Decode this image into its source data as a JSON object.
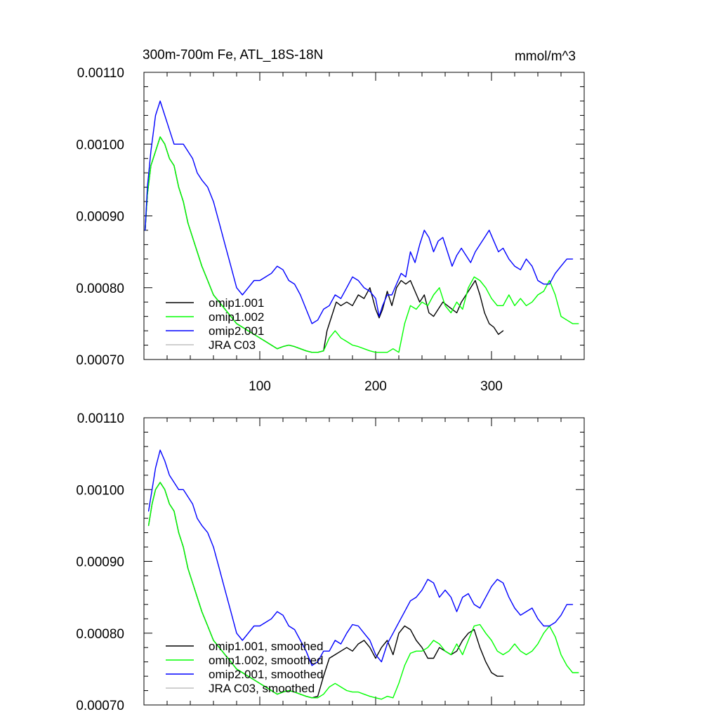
{
  "figure": {
    "title_left": "300m-700m Fe, ATL_18S-18N",
    "title_right": "mmol/m^3"
  },
  "chart_data": [
    {
      "type": "line",
      "title": "300m-700m Fe, ATL_18S-18N",
      "units": "mmol/m^3",
      "xlim": [
        0,
        380
      ],
      "ylim": [
        0.0007,
        0.0011
      ],
      "xticks": [
        100,
        200,
        300
      ],
      "xtick_labels": [
        "100",
        "200",
        "300"
      ],
      "yticks": [
        0.0007,
        0.0008,
        0.0009,
        0.001,
        0.0011
      ],
      "ytick_labels": [
        "0.00070",
        "0.00080",
        "0.00090",
        "0.00100",
        "0.00110"
      ],
      "legend_position": "lower-left",
      "series": [
        {
          "name": "omip1.001",
          "color": "#000000",
          "x": [
            1,
            3,
            6,
            10,
            14,
            18,
            22,
            26,
            30,
            34,
            38,
            42,
            46,
            50,
            55,
            60,
            65,
            70,
            75,
            80,
            85,
            90,
            95,
            100,
            105,
            110,
            115,
            120,
            125,
            130,
            135,
            140,
            145,
            150,
            155,
            158,
            162,
            166,
            170,
            175,
            180,
            185,
            190,
            195,
            200,
            203,
            206,
            210,
            214,
            218,
            222,
            226,
            230,
            234,
            238,
            242,
            246,
            250,
            254,
            258,
            262,
            266,
            270,
            274,
            278,
            282,
            286,
            290,
            294,
            298,
            302,
            306,
            310
          ],
          "y": [
            0.00088,
            0.00093,
            0.00097,
            0.00099,
            0.00101,
            0.001,
            0.00098,
            0.00097,
            0.00094,
            0.00092,
            0.00089,
            0.00087,
            0.00085,
            0.00083,
            0.00081,
            0.00079,
            0.00078,
            0.00077,
            0.00076,
            0.00075,
            0.000745,
            0.00074,
            0.000735,
            0.00073,
            0.000725,
            0.00072,
            0.000715,
            0.000718,
            0.00072,
            0.000718,
            0.000715,
            0.000712,
            0.00071,
            0.00071,
            0.000712,
            0.00074,
            0.00076,
            0.00078,
            0.000775,
            0.00078,
            0.000775,
            0.00079,
            0.000785,
            0.0008,
            0.00077,
            0.000758,
            0.00077,
            0.000795,
            0.000775,
            0.0008,
            0.00081,
            0.000805,
            0.00081,
            0.000795,
            0.00078,
            0.00079,
            0.000765,
            0.00076,
            0.00077,
            0.00078,
            0.000775,
            0.00077,
            0.000765,
            0.00078,
            0.00079,
            0.0008,
            0.00081,
            0.00079,
            0.000765,
            0.00075,
            0.000745,
            0.000735,
            0.00074
          ]
        },
        {
          "name": "omip1.002",
          "color": "#00ff00",
          "x": [
            1,
            3,
            6,
            10,
            14,
            18,
            22,
            26,
            30,
            34,
            38,
            42,
            46,
            50,
            55,
            60,
            65,
            70,
            75,
            80,
            85,
            90,
            95,
            100,
            105,
            110,
            115,
            120,
            125,
            130,
            135,
            140,
            145,
            150,
            155,
            160,
            165,
            170,
            175,
            180,
            185,
            190,
            195,
            200,
            205,
            210,
            215,
            220,
            225,
            230,
            235,
            240,
            245,
            250,
            255,
            260,
            265,
            270,
            275,
            280,
            285,
            290,
            295,
            300,
            305,
            310,
            315,
            320,
            325,
            330,
            335,
            340,
            345,
            350,
            355,
            360,
            365,
            370,
            375
          ],
          "y": [
            0.00088,
            0.00093,
            0.00097,
            0.00099,
            0.00101,
            0.001,
            0.00098,
            0.00097,
            0.00094,
            0.00092,
            0.00089,
            0.00087,
            0.00085,
            0.00083,
            0.00081,
            0.00079,
            0.00078,
            0.00077,
            0.00076,
            0.00075,
            0.000745,
            0.00074,
            0.000735,
            0.00073,
            0.000725,
            0.00072,
            0.000715,
            0.000718,
            0.00072,
            0.000718,
            0.000715,
            0.000712,
            0.00071,
            0.00071,
            0.000712,
            0.00073,
            0.00074,
            0.00073,
            0.000725,
            0.00072,
            0.000718,
            0.000715,
            0.000712,
            0.00071,
            0.00071,
            0.00071,
            0.000715,
            0.00071,
            0.00075,
            0.000775,
            0.00077,
            0.00078,
            0.000775,
            0.00079,
            0.0008,
            0.000775,
            0.000765,
            0.00078,
            0.00077,
            0.0008,
            0.000815,
            0.00081,
            0.0008,
            0.000785,
            0.000775,
            0.000775,
            0.00079,
            0.000775,
            0.000785,
            0.000775,
            0.00078,
            0.00079,
            0.000795,
            0.00081,
            0.00079,
            0.00076,
            0.000755,
            0.00075,
            0.00075
          ]
        },
        {
          "name": "omip2.001",
          "color": "#0000ff",
          "x": [
            1,
            3,
            6,
            10,
            14,
            18,
            22,
            26,
            30,
            34,
            38,
            42,
            46,
            50,
            55,
            60,
            65,
            70,
            75,
            80,
            85,
            90,
            95,
            100,
            105,
            110,
            115,
            120,
            125,
            130,
            135,
            140,
            145,
            150,
            155,
            160,
            165,
            170,
            175,
            180,
            185,
            190,
            195,
            200,
            203,
            206,
            210,
            214,
            218,
            222,
            226,
            230,
            234,
            238,
            242,
            246,
            250,
            254,
            258,
            262,
            266,
            270,
            274,
            278,
            282,
            286,
            290,
            294,
            298,
            302,
            306,
            310,
            315,
            320,
            325,
            330,
            335,
            340,
            345,
            350,
            355,
            360,
            365,
            370
          ],
          "y": [
            0.00088,
            0.00094,
            0.00099,
            0.00104,
            0.00106,
            0.00104,
            0.00102,
            0.001,
            0.001,
            0.001,
            0.00099,
            0.00098,
            0.00096,
            0.00095,
            0.00094,
            0.00092,
            0.00089,
            0.00086,
            0.00083,
            0.0008,
            0.00079,
            0.0008,
            0.00081,
            0.00081,
            0.000815,
            0.00082,
            0.00083,
            0.000825,
            0.00081,
            0.000805,
            0.00079,
            0.00077,
            0.00075,
            0.000755,
            0.00077,
            0.000775,
            0.00079,
            0.000785,
            0.0008,
            0.000815,
            0.00081,
            0.0008,
            0.000795,
            0.000785,
            0.00076,
            0.000775,
            0.00079,
            0.00079,
            0.000805,
            0.00082,
            0.000815,
            0.00085,
            0.000835,
            0.00086,
            0.00088,
            0.00087,
            0.00085,
            0.000865,
            0.00087,
            0.00085,
            0.00083,
            0.000845,
            0.000855,
            0.000845,
            0.000835,
            0.00085,
            0.00086,
            0.00087,
            0.00088,
            0.000865,
            0.00085,
            0.000855,
            0.00084,
            0.00083,
            0.000825,
            0.00084,
            0.00083,
            0.00081,
            0.000805,
            0.000805,
            0.00082,
            0.00083,
            0.00084,
            0.00084
          ]
        },
        {
          "name": "JRA C03",
          "color": "#c0c0c0",
          "x": [],
          "y": []
        }
      ]
    },
    {
      "type": "line",
      "title": "",
      "xlim": [
        0,
        380
      ],
      "ylim": [
        0.0007,
        0.0011
      ],
      "xticks": [
        100,
        200,
        300
      ],
      "xtick_labels": [],
      "yticks": [
        0.0007,
        0.0008,
        0.0009,
        0.001,
        0.0011
      ],
      "ytick_labels": [
        "0.00070",
        "0.00080",
        "0.00090",
        "0.00100",
        "0.00110"
      ],
      "legend_position": "lower-left",
      "series": [
        {
          "name": "omip1.001, smoothed",
          "color": "#000000",
          "x": [
            4,
            7,
            10,
            14,
            18,
            22,
            26,
            30,
            34,
            38,
            42,
            46,
            50,
            55,
            60,
            65,
            70,
            75,
            80,
            85,
            90,
            95,
            100,
            105,
            110,
            115,
            120,
            125,
            130,
            135,
            140,
            145,
            150,
            155,
            160,
            165,
            170,
            175,
            180,
            185,
            190,
            195,
            200,
            205,
            210,
            215,
            220,
            225,
            230,
            235,
            240,
            245,
            250,
            255,
            260,
            265,
            270,
            275,
            280,
            285,
            290,
            295,
            300,
            305,
            310
          ],
          "y": [
            0.00095,
            0.00098,
            0.001,
            0.00101,
            0.001,
            0.00098,
            0.00097,
            0.00094,
            0.00092,
            0.00089,
            0.00087,
            0.00085,
            0.00083,
            0.00081,
            0.00079,
            0.00078,
            0.00077,
            0.00076,
            0.00075,
            0.000745,
            0.00074,
            0.000735,
            0.00073,
            0.000725,
            0.00072,
            0.000715,
            0.000718,
            0.00072,
            0.000718,
            0.000715,
            0.000712,
            0.00071,
            0.000712,
            0.00074,
            0.000765,
            0.00077,
            0.000775,
            0.00078,
            0.000775,
            0.000785,
            0.00079,
            0.00078,
            0.000765,
            0.00078,
            0.00079,
            0.00077,
            0.0008,
            0.00081,
            0.000805,
            0.00079,
            0.00078,
            0.000765,
            0.000765,
            0.00078,
            0.000775,
            0.00077,
            0.000775,
            0.00079,
            0.0008,
            0.000805,
            0.00078,
            0.00076,
            0.000745,
            0.00074,
            0.00074
          ]
        },
        {
          "name": "omip1.002, smoothed",
          "color": "#00ff00",
          "x": [
            4,
            7,
            10,
            14,
            18,
            22,
            26,
            30,
            34,
            38,
            42,
            46,
            50,
            55,
            60,
            65,
            70,
            75,
            80,
            85,
            90,
            95,
            100,
            105,
            110,
            115,
            120,
            125,
            130,
            135,
            140,
            145,
            150,
            155,
            160,
            165,
            170,
            175,
            180,
            185,
            190,
            195,
            200,
            205,
            210,
            215,
            220,
            225,
            230,
            235,
            240,
            245,
            250,
            255,
            260,
            265,
            270,
            275,
            280,
            285,
            290,
            295,
            300,
            305,
            310,
            315,
            320,
            325,
            330,
            335,
            340,
            345,
            350,
            355,
            360,
            365,
            370,
            375
          ],
          "y": [
            0.00095,
            0.00098,
            0.001,
            0.00101,
            0.001,
            0.00098,
            0.00097,
            0.00094,
            0.00092,
            0.00089,
            0.00087,
            0.00085,
            0.00083,
            0.00081,
            0.00079,
            0.00078,
            0.00077,
            0.00076,
            0.00075,
            0.000745,
            0.00074,
            0.000735,
            0.00073,
            0.000725,
            0.00072,
            0.000715,
            0.000718,
            0.00072,
            0.000718,
            0.000715,
            0.000712,
            0.00071,
            0.00071,
            0.000715,
            0.000725,
            0.00073,
            0.000725,
            0.00072,
            0.000718,
            0.000718,
            0.000715,
            0.000712,
            0.00071,
            0.000708,
            0.000712,
            0.00071,
            0.00073,
            0.000755,
            0.000772,
            0.000775,
            0.000775,
            0.00078,
            0.00079,
            0.000785,
            0.000775,
            0.00077,
            0.000785,
            0.00077,
            0.00079,
            0.00081,
            0.000812,
            0.0008,
            0.00079,
            0.000775,
            0.00077,
            0.000775,
            0.000785,
            0.000775,
            0.00077,
            0.000775,
            0.000785,
            0.0008,
            0.00081,
            0.000795,
            0.00077,
            0.000755,
            0.000745,
            0.000745
          ]
        },
        {
          "name": "omip2.001, smoothed",
          "color": "#0000ff",
          "x": [
            4,
            7,
            10,
            14,
            18,
            22,
            26,
            30,
            34,
            38,
            42,
            46,
            50,
            55,
            60,
            65,
            70,
            75,
            80,
            85,
            90,
            95,
            100,
            105,
            110,
            115,
            120,
            125,
            130,
            135,
            140,
            145,
            150,
            155,
            160,
            165,
            170,
            175,
            180,
            185,
            190,
            195,
            200,
            205,
            210,
            215,
            220,
            225,
            230,
            235,
            240,
            245,
            250,
            255,
            260,
            265,
            270,
            275,
            280,
            285,
            290,
            295,
            300,
            305,
            310,
            315,
            320,
            325,
            330,
            335,
            340,
            345,
            350,
            355,
            360,
            365,
            370
          ],
          "y": [
            0.00097,
            0.001,
            0.00103,
            0.001055,
            0.00104,
            0.00102,
            0.00101,
            0.001,
            0.001,
            0.00099,
            0.00098,
            0.00096,
            0.00095,
            0.00094,
            0.00092,
            0.00089,
            0.00086,
            0.00083,
            0.0008,
            0.00079,
            0.0008,
            0.00081,
            0.00081,
            0.000815,
            0.00082,
            0.00083,
            0.000825,
            0.00081,
            0.000805,
            0.00079,
            0.000775,
            0.000755,
            0.00076,
            0.000775,
            0.000775,
            0.00079,
            0.000785,
            0.0008,
            0.000812,
            0.00081,
            0.0008,
            0.00079,
            0.00077,
            0.00076,
            0.000785,
            0.0008,
            0.000815,
            0.00083,
            0.000845,
            0.00085,
            0.00086,
            0.000875,
            0.00087,
            0.00085,
            0.00086,
            0.00085,
            0.00083,
            0.00085,
            0.000855,
            0.00084,
            0.000835,
            0.00085,
            0.000865,
            0.000875,
            0.00087,
            0.00085,
            0.000835,
            0.000825,
            0.00083,
            0.000835,
            0.00082,
            0.00081,
            0.00081,
            0.000815,
            0.000825,
            0.00084,
            0.00084
          ]
        },
        {
          "name": "JRA C03, smoothed",
          "color": "#c0c0c0",
          "x": [],
          "y": []
        }
      ]
    }
  ]
}
